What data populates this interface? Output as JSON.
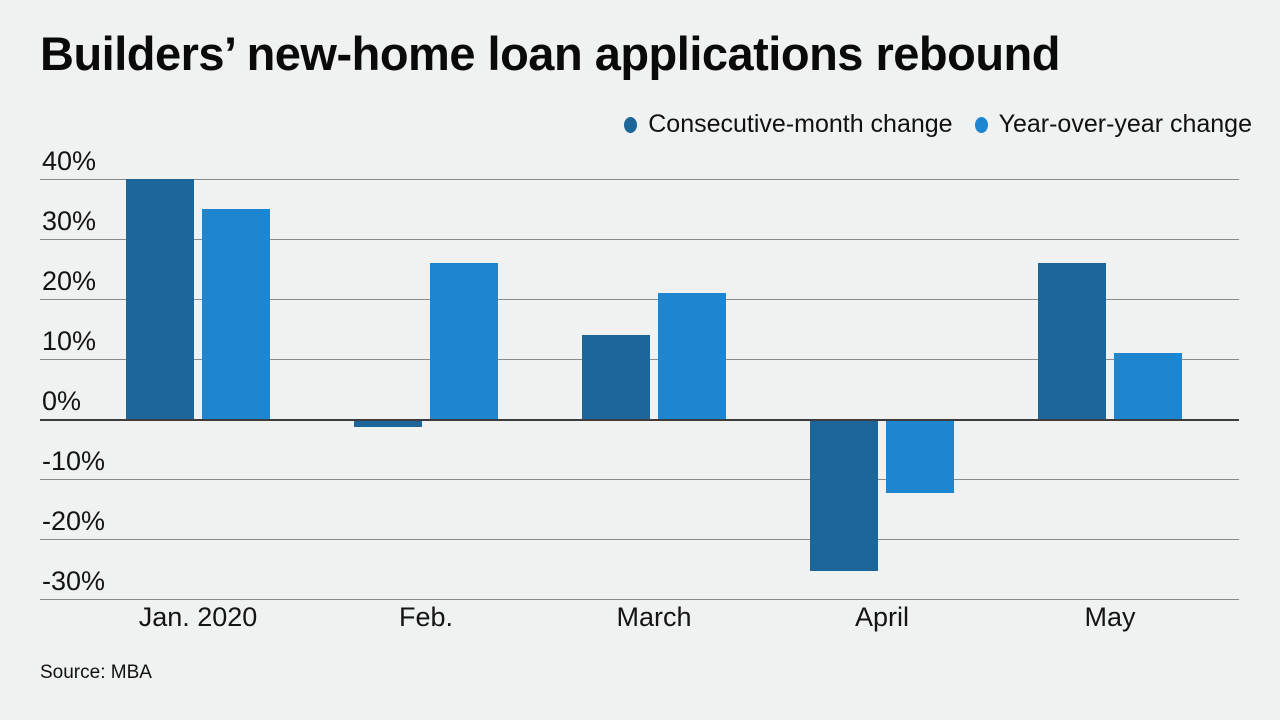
{
  "title": "Builders’ new-home loan applications rebound",
  "source": "Source: MBA",
  "colors": {
    "background": "#f0f1f1",
    "dark_series": "#1d6699",
    "light_series": "#1e86d1",
    "gridline": "#8a8a8a",
    "zero_line": "#3c3c3c",
    "text": "#141414"
  },
  "legend": {
    "items": [
      {
        "label": "Consecutive-month change",
        "color": "#1d6699"
      },
      {
        "label": "Year-over-year change",
        "color": "#1e86d1"
      }
    ]
  },
  "chart_data": {
    "type": "bar",
    "title": "Builders’ new-home loan applications rebound",
    "categories": [
      "Jan. 2020",
      "Feb.",
      "March",
      "April",
      "May"
    ],
    "series": [
      {
        "name": "Consecutive-month change",
        "color": "#1d6699",
        "values": [
          40,
          -1,
          14,
          -25,
          26
        ]
      },
      {
        "name": "Year-over-year change",
        "color": "#1e86d1",
        "values": [
          35,
          26,
          21,
          -12,
          11
        ]
      }
    ],
    "yticks": [
      40,
      30,
      20,
      10,
      0,
      -10,
      -20,
      -30
    ],
    "ytick_suffix": "%",
    "ylim": [
      -30,
      40
    ],
    "xlabel": "",
    "ylabel": "",
    "grid": true,
    "legend_position": "top-right",
    "source": "Source: MBA"
  }
}
